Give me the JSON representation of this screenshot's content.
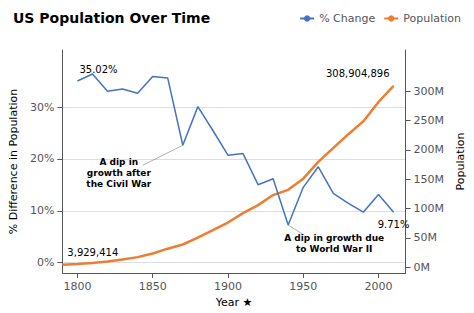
{
  "chart_data": {
    "type": "line",
    "title": "US Population Over Time",
    "xlabel": "Year ★",
    "ylabel": "% Difference in Population",
    "y2label": "Population",
    "x": [
      1790,
      1800,
      1810,
      1820,
      1830,
      1840,
      1850,
      1860,
      1870,
      1880,
      1890,
      1900,
      1910,
      1920,
      1930,
      1940,
      1950,
      1960,
      1970,
      1980,
      1990,
      2000,
      2010
    ],
    "series": [
      {
        "name": "% Change",
        "color": "#4472c4",
        "axis": "y",
        "values": [
          null,
          35.02,
          36.38,
          33.06,
          33.49,
          32.67,
          35.87,
          35.58,
          22.63,
          30.08,
          25.48,
          20.71,
          21.02,
          15.03,
          16.18,
          7.25,
          14.52,
          18.48,
          13.37,
          11.42,
          9.75,
          13.15,
          9.71
        ]
      },
      {
        "name": "Population",
        "color": "#ed7d31",
        "axis": "y2",
        "values": [
          3929414,
          5308483,
          7239881,
          9638453,
          12866020,
          17069453,
          23191876,
          31443321,
          38558371,
          50189209,
          62979766,
          75994575,
          91972266,
          105710620,
          122775046,
          131669275,
          150697361,
          179323175,
          203211926,
          226545805,
          248709873,
          281421906,
          308904896
        ]
      }
    ],
    "xlim": [
      1790,
      2018
    ],
    "xticks": [
      1800,
      1850,
      1900,
      1950,
      2000
    ],
    "ylim": [
      -2,
      41
    ],
    "yticks": [
      {
        "value": 0,
        "label": "0%"
      },
      {
        "value": 10,
        "label": "10%"
      },
      {
        "value": 20,
        "label": "20%"
      },
      {
        "value": 30,
        "label": "30%"
      }
    ],
    "y2lim": [
      -10000000,
      370000000
    ],
    "y2ticks": [
      {
        "value": 0,
        "label": "0M"
      },
      {
        "value": 50000000,
        "label": "50M"
      },
      {
        "value": 100000000,
        "label": "100M"
      },
      {
        "value": 150000000,
        "label": "150M"
      },
      {
        "value": 200000000,
        "label": "200M"
      },
      {
        "value": 250000000,
        "label": "250M"
      },
      {
        "value": 300000000,
        "label": "300M"
      }
    ],
    "grid": true,
    "legend": "top right",
    "annotations": [
      {
        "text": "A dip in\ngrowth after\nthe Civil War",
        "x": 1870,
        "y": 22.63,
        "axis": "y"
      },
      {
        "text": "A dip in growth due\nto World War II",
        "x": 1940,
        "y": 7.25,
        "axis": "y"
      },
      {
        "text": "35.02%",
        "x": 1800,
        "y": 35.02,
        "axis": "y"
      },
      {
        "text": "9.71%",
        "x": 2010,
        "y": 9.71,
        "axis": "y"
      },
      {
        "text": "308,904,896",
        "x": 2010,
        "y": 308904896,
        "axis": "y2"
      },
      {
        "text": "3,929,414",
        "x": 1790,
        "y": 3929414,
        "axis": "y2"
      }
    ]
  }
}
